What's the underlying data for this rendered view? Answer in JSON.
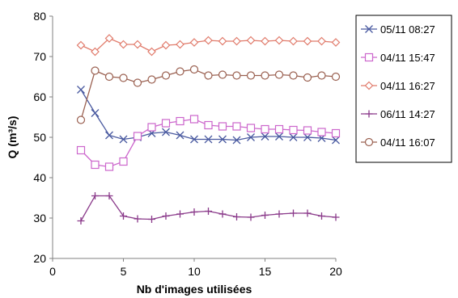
{
  "chart_data": {
    "type": "line",
    "xlabel": "Nb d'images utilisées",
    "ylabel": "Q (m³/s)",
    "xlim": [
      0,
      20
    ],
    "ylim": [
      20,
      80
    ],
    "xticks": [
      "0",
      "5",
      "10",
      "15",
      "20"
    ],
    "yticks": [
      "20",
      "30",
      "40",
      "50",
      "60",
      "70",
      "80"
    ],
    "grid": false,
    "legend": "right",
    "series": [
      {
        "name": "05/11 08:27",
        "color": "#4a5aa0",
        "marker": "x",
        "x": [
          2,
          3,
          4,
          5,
          6,
          7,
          8,
          9,
          10,
          11,
          12,
          13,
          14,
          15,
          16,
          17,
          18,
          19,
          20
        ],
        "y": [
          61.8,
          56,
          50.5,
          49.5,
          50,
          51,
          51.3,
          50.5,
          49.5,
          49.5,
          49.5,
          49.3,
          50,
          50.2,
          50.2,
          50,
          50,
          49.8,
          49.3
        ]
      },
      {
        "name": "04/11 15:47",
        "color": "#cc66cc",
        "marker": "square",
        "x": [
          2,
          3,
          4,
          5,
          6,
          7,
          8,
          9,
          10,
          11,
          12,
          13,
          14,
          15,
          16,
          17,
          18,
          19,
          20
        ],
        "y": [
          46.8,
          43.2,
          42.7,
          44,
          50.3,
          52.5,
          53.5,
          54,
          54.5,
          53,
          52.7,
          52.7,
          52.3,
          52,
          52,
          51.8,
          51.7,
          51.3,
          51
        ]
      },
      {
        "name": "04/11 16:27",
        "color": "#e07a6a",
        "marker": "diamond",
        "x": [
          2,
          3,
          4,
          5,
          6,
          7,
          8,
          9,
          10,
          11,
          12,
          13,
          14,
          15,
          16,
          17,
          18,
          19,
          20
        ],
        "y": [
          72.8,
          71.2,
          74.5,
          73,
          73,
          71.2,
          72.8,
          73,
          73.5,
          74,
          73.8,
          73.8,
          74,
          73.8,
          74,
          73.8,
          73.8,
          73.8,
          73.5
        ]
      },
      {
        "name": "06/11 14:27",
        "color": "#8a3a8a",
        "marker": "plus",
        "x": [
          2,
          3,
          4,
          5,
          6,
          7,
          8,
          9,
          10,
          11,
          12,
          13,
          14,
          15,
          16,
          17,
          18,
          19,
          20
        ],
        "y": [
          29.3,
          35.5,
          35.5,
          30.5,
          29.8,
          29.7,
          30.5,
          31,
          31.5,
          31.7,
          31,
          30.3,
          30.2,
          30.7,
          31,
          31.2,
          31.2,
          30.5,
          30.2
        ]
      },
      {
        "name": "04/11 16:07",
        "color": "#9a6050",
        "marker": "circle",
        "x": [
          2,
          3,
          4,
          5,
          6,
          7,
          8,
          9,
          10,
          11,
          12,
          13,
          14,
          15,
          16,
          17,
          18,
          19,
          20
        ],
        "y": [
          54.3,
          66.5,
          65,
          64.7,
          63.5,
          64.3,
          65.3,
          66.3,
          66.8,
          65.3,
          65.5,
          65.3,
          65.3,
          65.3,
          65.5,
          65.3,
          64.8,
          65.3,
          65
        ]
      }
    ]
  }
}
